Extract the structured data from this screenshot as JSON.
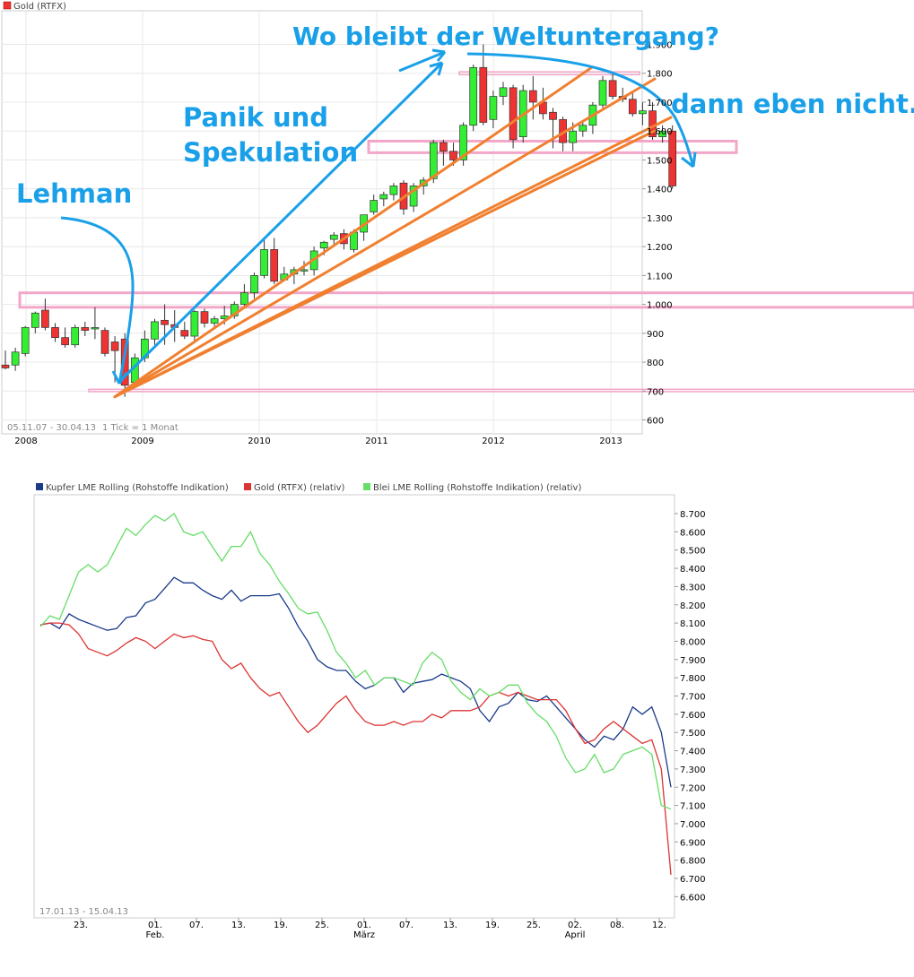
{
  "chart_data": [
    {
      "type": "candlestick",
      "series_name": "Gold (RTFX)",
      "range_label": "05.11.07 - 30.04.13",
      "tick_label": "1 Tick = 1 Monat",
      "x_tick_labels": [
        "2008",
        "2009",
        "2010",
        "2011",
        "2012",
        "2013"
      ],
      "y_tick_labels": [
        "1.900",
        "1.800",
        "1.700",
        "1.600",
        "1.500",
        "1.400",
        "1.300",
        "1.200",
        "1.100",
        "1.000",
        "900",
        "800",
        "700",
        "600"
      ],
      "ylim": [
        550,
        1950
      ],
      "grid": true,
      "candles": [
        {
          "o": 790,
          "h": 840,
          "l": 775,
          "c": 780
        },
        {
          "o": 790,
          "h": 850,
          "l": 770,
          "c": 835
        },
        {
          "o": 830,
          "h": 925,
          "l": 820,
          "c": 920
        },
        {
          "o": 920,
          "h": 975,
          "l": 900,
          "c": 970
        },
        {
          "o": 980,
          "h": 1020,
          "l": 910,
          "c": 920
        },
        {
          "o": 920,
          "h": 935,
          "l": 870,
          "c": 885
        },
        {
          "o": 885,
          "h": 920,
          "l": 850,
          "c": 860
        },
        {
          "o": 860,
          "h": 930,
          "l": 850,
          "c": 920
        },
        {
          "o": 920,
          "h": 940,
          "l": 890,
          "c": 910
        },
        {
          "o": 915,
          "h": 990,
          "l": 880,
          "c": 920
        },
        {
          "o": 910,
          "h": 920,
          "l": 820,
          "c": 830
        },
        {
          "o": 870,
          "h": 890,
          "l": 730,
          "c": 840
        },
        {
          "o": 880,
          "h": 900,
          "l": 680,
          "c": 720
        },
        {
          "o": 730,
          "h": 830,
          "l": 710,
          "c": 815
        },
        {
          "o": 815,
          "h": 910,
          "l": 800,
          "c": 880
        },
        {
          "o": 880,
          "h": 950,
          "l": 860,
          "c": 940
        },
        {
          "o": 945,
          "h": 1000,
          "l": 860,
          "c": 930
        },
        {
          "o": 930,
          "h": 980,
          "l": 870,
          "c": 920
        },
        {
          "o": 910,
          "h": 940,
          "l": 880,
          "c": 890
        },
        {
          "o": 890,
          "h": 980,
          "l": 870,
          "c": 975
        },
        {
          "o": 975,
          "h": 985,
          "l": 920,
          "c": 935
        },
        {
          "o": 935,
          "h": 960,
          "l": 920,
          "c": 950
        },
        {
          "o": 950,
          "h": 995,
          "l": 930,
          "c": 960
        },
        {
          "o": 960,
          "h": 1010,
          "l": 950,
          "c": 1000
        },
        {
          "o": 1000,
          "h": 1070,
          "l": 990,
          "c": 1040
        },
        {
          "o": 1040,
          "h": 1110,
          "l": 1020,
          "c": 1100
        },
        {
          "o": 1100,
          "h": 1230,
          "l": 1090,
          "c": 1190
        },
        {
          "o": 1190,
          "h": 1230,
          "l": 1070,
          "c": 1080
        },
        {
          "o": 1085,
          "h": 1130,
          "l": 1080,
          "c": 1105
        },
        {
          "o": 1105,
          "h": 1130,
          "l": 1070,
          "c": 1120
        },
        {
          "o": 1120,
          "h": 1150,
          "l": 1100,
          "c": 1120
        },
        {
          "o": 1120,
          "h": 1200,
          "l": 1100,
          "c": 1185
        },
        {
          "o": 1195,
          "h": 1220,
          "l": 1170,
          "c": 1215
        },
        {
          "o": 1225,
          "h": 1250,
          "l": 1200,
          "c": 1240
        },
        {
          "o": 1245,
          "h": 1260,
          "l": 1190,
          "c": 1210
        },
        {
          "o": 1190,
          "h": 1260,
          "l": 1180,
          "c": 1250
        },
        {
          "o": 1250,
          "h": 1310,
          "l": 1220,
          "c": 1310
        },
        {
          "o": 1320,
          "h": 1380,
          "l": 1310,
          "c": 1360
        },
        {
          "o": 1365,
          "h": 1390,
          "l": 1340,
          "c": 1380
        },
        {
          "o": 1380,
          "h": 1420,
          "l": 1360,
          "c": 1410
        },
        {
          "o": 1420,
          "h": 1430,
          "l": 1310,
          "c": 1330
        },
        {
          "o": 1340,
          "h": 1420,
          "l": 1320,
          "c": 1410
        },
        {
          "o": 1410,
          "h": 1440,
          "l": 1380,
          "c": 1430
        },
        {
          "o": 1435,
          "h": 1570,
          "l": 1420,
          "c": 1560
        },
        {
          "o": 1560,
          "h": 1570,
          "l": 1480,
          "c": 1530
        },
        {
          "o": 1530,
          "h": 1560,
          "l": 1480,
          "c": 1500
        },
        {
          "o": 1500,
          "h": 1630,
          "l": 1480,
          "c": 1620
        },
        {
          "o": 1620,
          "h": 1830,
          "l": 1600,
          "c": 1820
        },
        {
          "o": 1820,
          "h": 1900,
          "l": 1620,
          "c": 1630
        },
        {
          "o": 1640,
          "h": 1740,
          "l": 1610,
          "c": 1720
        },
        {
          "o": 1720,
          "h": 1770,
          "l": 1690,
          "c": 1750
        },
        {
          "o": 1750,
          "h": 1760,
          "l": 1540,
          "c": 1570
        },
        {
          "o": 1580,
          "h": 1760,
          "l": 1560,
          "c": 1740
        },
        {
          "o": 1740,
          "h": 1790,
          "l": 1640,
          "c": 1700
        },
        {
          "o": 1700,
          "h": 1750,
          "l": 1640,
          "c": 1660
        },
        {
          "o": 1665,
          "h": 1680,
          "l": 1540,
          "c": 1640
        },
        {
          "o": 1640,
          "h": 1650,
          "l": 1530,
          "c": 1560
        },
        {
          "o": 1560,
          "h": 1630,
          "l": 1530,
          "c": 1600
        },
        {
          "o": 1600,
          "h": 1630,
          "l": 1580,
          "c": 1620
        },
        {
          "o": 1620,
          "h": 1700,
          "l": 1590,
          "c": 1690
        },
        {
          "o": 1690,
          "h": 1790,
          "l": 1680,
          "c": 1775
        },
        {
          "o": 1775,
          "h": 1800,
          "l": 1710,
          "c": 1720
        },
        {
          "o": 1720,
          "h": 1750,
          "l": 1700,
          "c": 1710
        },
        {
          "o": 1710,
          "h": 1740,
          "l": 1650,
          "c": 1660
        },
        {
          "o": 1660,
          "h": 1700,
          "l": 1620,
          "c": 1670
        },
        {
          "o": 1670,
          "h": 1700,
          "l": 1570,
          "c": 1580
        },
        {
          "o": 1580,
          "h": 1620,
          "l": 1560,
          "c": 1600
        },
        {
          "o": 1600,
          "h": 1620,
          "l": 1400,
          "c": 1410
        }
      ],
      "colors": {
        "up": "#33ee33",
        "down": "#ee3333",
        "trendline": "#f08030",
        "zone": "#f4a6c8",
        "annotation": "#1aa0e8"
      },
      "annotations": [
        "Lehman",
        "Panik und",
        "Spekulation",
        "Wo bleibt der Weltuntergang?",
        "dann eben nicht.."
      ],
      "zones": [
        {
          "from": 990,
          "to": 1040
        },
        {
          "from": 1525,
          "to": 1565
        },
        {
          "from": 1795,
          "to": 1805
        },
        {
          "from": 698,
          "to": 706
        }
      ]
    },
    {
      "type": "line",
      "range_label": "17.01.13 - 15.04.13",
      "x_tick_labels": [
        "23.",
        "01.",
        "07.",
        "13.",
        "19.",
        "25.",
        "01.",
        "07.",
        "13.",
        "19.",
        "25.",
        "02.",
        "08.",
        "12."
      ],
      "x_month_labels": [
        "Feb.",
        "März",
        "April"
      ],
      "y_tick_labels": [
        "8.700",
        "8.600",
        "8.500",
        "8.400",
        "8.300",
        "8.200",
        "8.100",
        "8.000",
        "7.900",
        "7.800",
        "7.700",
        "7.600",
        "7.500",
        "7.400",
        "7.300",
        "7.200",
        "7.100",
        "7.000",
        "6.900",
        "6.800",
        "6.700",
        "6.600"
      ],
      "ylim": [
        6550,
        8800
      ],
      "grid": false,
      "series": [
        {
          "name": "Kupfer LME Rolling (Rohstoffe Indikation)",
          "color": "#1a3a8a",
          "values": [
            8090,
            8100,
            8070,
            8150,
            8120,
            8100,
            8080,
            8060,
            8070,
            8130,
            8140,
            8210,
            8230,
            8290,
            8350,
            8320,
            8320,
            8280,
            8250,
            8230,
            8280,
            8220,
            8250,
            8250,
            8250,
            8260,
            8180,
            8080,
            8000,
            7900,
            7860,
            7840,
            7840,
            7780,
            7740,
            7760,
            7800,
            7800,
            7720,
            7770,
            7780,
            7790,
            7820,
            7800,
            7780,
            7740,
            7620,
            7560,
            7640,
            7660,
            7720,
            7680,
            7670,
            7700,
            7640,
            7580,
            7520,
            7460,
            7420,
            7480,
            7460,
            7520,
            7640,
            7600,
            7640,
            7500,
            7200
          ]
        },
        {
          "name": "Gold (RTFX) (relativ)",
          "color": "#dd3333",
          "values": [
            8090,
            8100,
            8100,
            8090,
            8040,
            7960,
            7940,
            7920,
            7950,
            7990,
            8020,
            8000,
            7960,
            8000,
            8040,
            8020,
            8030,
            8010,
            8000,
            7900,
            7850,
            7880,
            7800,
            7740,
            7700,
            7720,
            7640,
            7560,
            7500,
            7540,
            7600,
            7660,
            7700,
            7620,
            7560,
            7540,
            7540,
            7560,
            7540,
            7560,
            7560,
            7600,
            7580,
            7620,
            7620,
            7620,
            7640,
            7700,
            7720,
            7700,
            7720,
            7700,
            7680,
            7680,
            7680,
            7620,
            7520,
            7440,
            7460,
            7520,
            7560,
            7520,
            7480,
            7440,
            7460,
            7300,
            6720
          ]
        },
        {
          "name": "Blei LME Rolling (Rohstoffe Indikation) (relativ)",
          "color": "#66dd66",
          "values": [
            8080,
            8140,
            8120,
            8250,
            8380,
            8420,
            8380,
            8420,
            8520,
            8620,
            8580,
            8640,
            8690,
            8660,
            8700,
            8600,
            8580,
            8600,
            8520,
            8440,
            8520,
            8520,
            8600,
            8480,
            8420,
            8330,
            8260,
            8180,
            8150,
            8160,
            8060,
            7940,
            7880,
            7800,
            7840,
            7760,
            7800,
            7800,
            7780,
            7760,
            7880,
            7940,
            7900,
            7780,
            7720,
            7680,
            7740,
            7700,
            7720,
            7760,
            7760,
            7660,
            7600,
            7560,
            7480,
            7360,
            7280,
            7300,
            7380,
            7280,
            7300,
            7380,
            7400,
            7420,
            7380,
            7100,
            7080
          ]
        }
      ]
    }
  ]
}
